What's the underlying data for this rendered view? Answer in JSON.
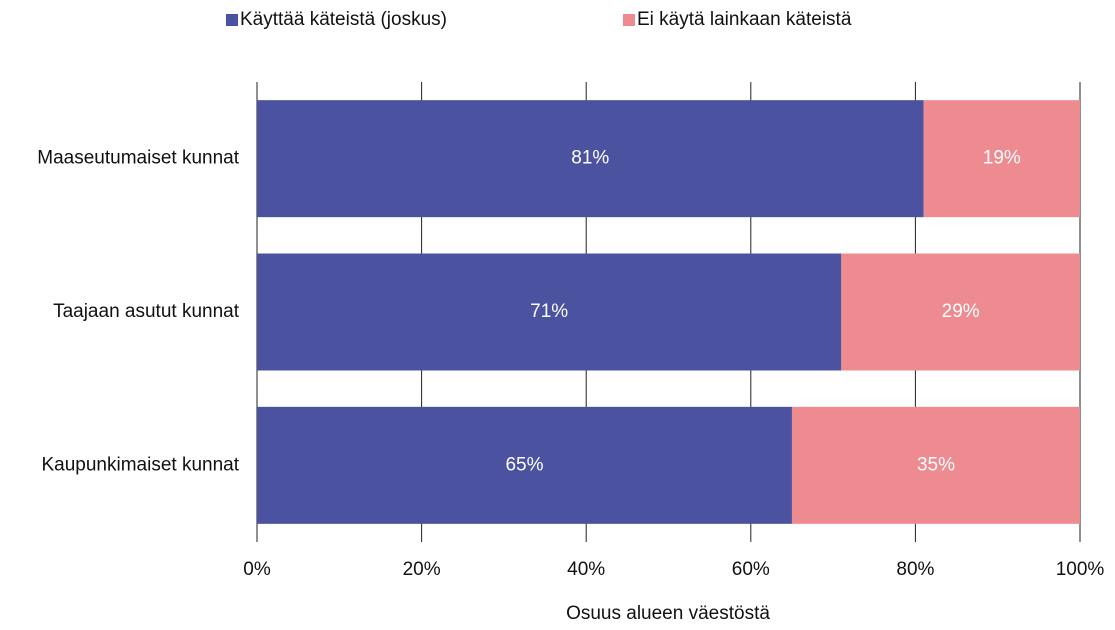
{
  "chart_data": {
    "type": "stacked_barh",
    "categories": [
      "Maaseutumaiset kunnat",
      "Taajaan asutut kunnat",
      "Kaupunkimaiset kunnat"
    ],
    "series": [
      {
        "name": "Käyttää käteistä (joskus)",
        "color": "#4b529f",
        "values": [
          81,
          71,
          65
        ],
        "value_labels": [
          "81%",
          "71%",
          "65%"
        ]
      },
      {
        "name": "Ei käytä lainkaan käteistä",
        "color": "#ee8b91",
        "values": [
          19,
          29,
          35
        ],
        "value_labels": [
          "19%",
          "29%",
          "35%"
        ]
      }
    ],
    "xlim": [
      0,
      100
    ],
    "xticks": [
      {
        "value": 0,
        "label": "0%"
      },
      {
        "value": 20,
        "label": "20%"
      },
      {
        "value": 40,
        "label": "40%"
      },
      {
        "value": 60,
        "label": "60%"
      },
      {
        "value": 80,
        "label": "80%"
      },
      {
        "value": 100,
        "label": "100%"
      }
    ],
    "xlabel": "Osuus alueen väestöstä",
    "grid": true
  }
}
